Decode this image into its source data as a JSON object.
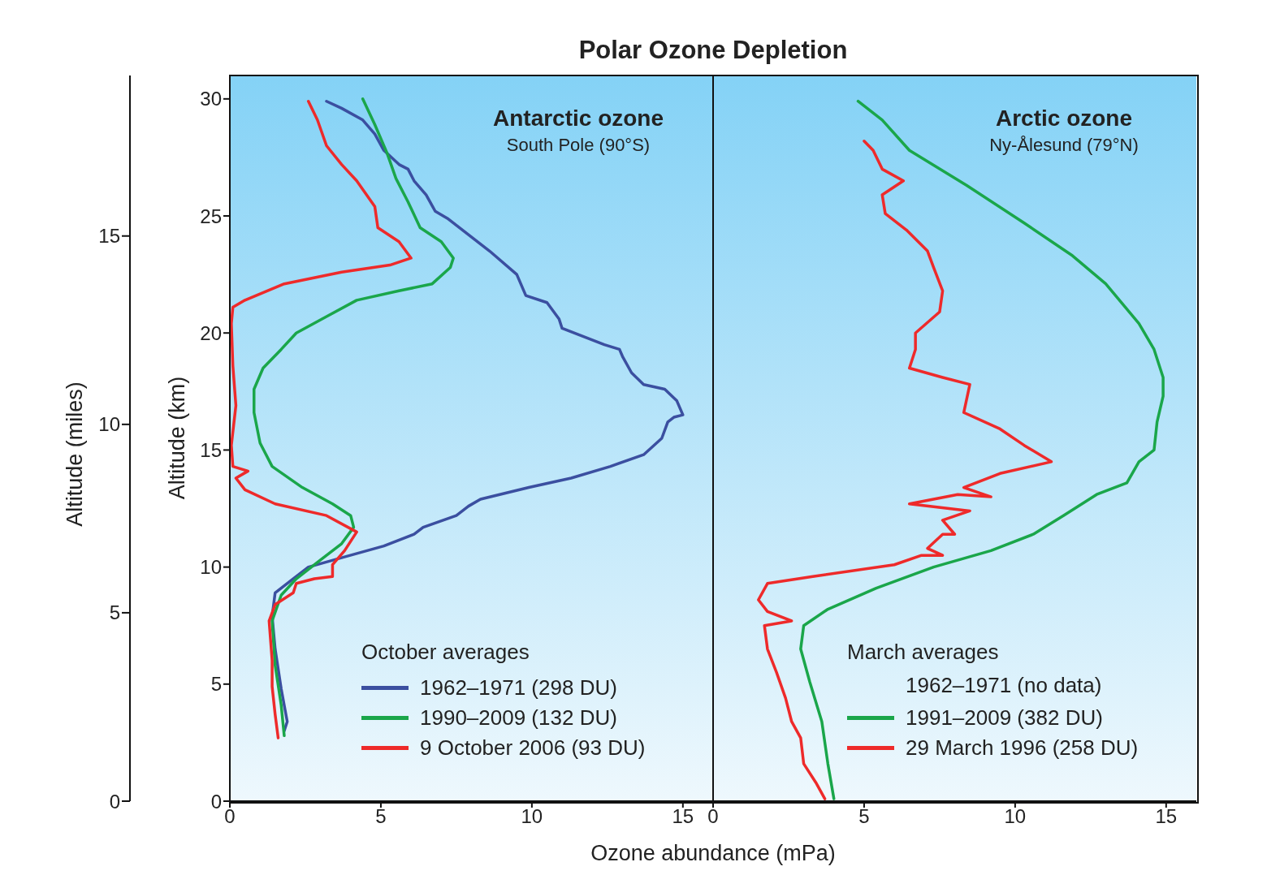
{
  "chart_data": [
    {
      "type": "line",
      "title": "Antarctic ozone",
      "subtitle": "South Pole (90°S)",
      "xlabel": "Ozone abundance (mPa)",
      "ylabel": "Altitude (km)",
      "y2label": "Altitude (miles)",
      "legend_title": "October averages",
      "annotations": [
        "Polar Ozone Depletion"
      ],
      "xlim": [
        0,
        16
      ],
      "xticks": [
        0,
        5,
        10,
        15
      ],
      "ylim": [
        0,
        31
      ],
      "yticks": [
        0,
        5,
        10,
        15,
        20,
        25,
        30
      ],
      "y2lim": [
        0,
        19.26
      ],
      "y2ticks": [
        0,
        5,
        10,
        15
      ],
      "legend": "bottom",
      "series": [
        {
          "name": "1962–1971 (298 DU)",
          "color": "#3b4fa0",
          "x": [
            1.8,
            1.9,
            1.7,
            1.5,
            1.4,
            1.5,
            2.0,
            2.6,
            3.7,
            5.1,
            6.1,
            6.4,
            7.5,
            7.9,
            8.3,
            9.9,
            11.3,
            12.6,
            13.7,
            14.3,
            14.5,
            14.7,
            15.0,
            14.8,
            14.4,
            13.7,
            13.3,
            13.0,
            12.9,
            12.4,
            11.0,
            10.9,
            10.5,
            9.8,
            9.5,
            8.6,
            7.9,
            7.2,
            6.8,
            6.5,
            6.1,
            5.9,
            5.6,
            5.1,
            4.8,
            4.4,
            3.7,
            3.2
          ],
          "values": [
            3.0,
            3.4,
            4.8,
            6.5,
            7.9,
            8.9,
            9.4,
            10.0,
            10.4,
            10.9,
            11.4,
            11.7,
            12.2,
            12.6,
            12.9,
            13.4,
            13.8,
            14.3,
            14.8,
            15.5,
            16.2,
            16.4,
            16.5,
            17.1,
            17.6,
            17.8,
            18.3,
            19.0,
            19.3,
            19.5,
            20.2,
            20.6,
            21.3,
            21.6,
            22.5,
            23.5,
            24.2,
            24.9,
            25.2,
            25.9,
            26.5,
            27.0,
            27.2,
            27.8,
            28.5,
            29.1,
            29.6,
            29.9
          ]
        },
        {
          "name": "1990–2009 (132 DU)",
          "color": "#1aa64a",
          "x": [
            1.8,
            1.7,
            1.5,
            1.4,
            1.7,
            2.2,
            3.0,
            3.7,
            4.1,
            4.0,
            3.4,
            2.4,
            1.4,
            1.0,
            0.8,
            0.8,
            1.1,
            1.7,
            2.2,
            3.2,
            4.2,
            5.6,
            6.7,
            7.3,
            7.4,
            7.0,
            6.3,
            5.9,
            5.5,
            5.2,
            4.8,
            4.4
          ],
          "values": [
            2.8,
            4.1,
            5.8,
            7.7,
            8.8,
            9.5,
            10.3,
            11.0,
            11.7,
            12.2,
            12.7,
            13.4,
            14.3,
            15.3,
            16.6,
            17.6,
            18.5,
            19.3,
            20.0,
            20.7,
            21.4,
            21.8,
            22.1,
            22.8,
            23.2,
            23.9,
            24.5,
            25.6,
            26.6,
            27.7,
            28.9,
            30.0
          ]
        },
        {
          "name": "9 October 2006 (93 DU)",
          "color": "#ee2a2a",
          "x": [
            1.6,
            1.5,
            1.4,
            1.4,
            1.3,
            1.5,
            2.1,
            2.2,
            2.8,
            3.4,
            3.4,
            3.8,
            4.2,
            3.2,
            1.5,
            0.5,
            0.2,
            0.6,
            0.1,
            0.05,
            0.2,
            0.1,
            0.05,
            0.1,
            0.5,
            1.8,
            3.7,
            5.3,
            6.0,
            5.6,
            4.9,
            4.8,
            4.2,
            3.7,
            3.2,
            2.9,
            2.6
          ],
          "values": [
            2.7,
            3.7,
            4.9,
            6.0,
            7.7,
            8.4,
            8.9,
            9.3,
            9.5,
            9.6,
            10.1,
            10.7,
            11.5,
            12.2,
            12.7,
            13.3,
            13.8,
            14.1,
            14.3,
            15.2,
            16.9,
            18.6,
            20.4,
            21.1,
            21.4,
            22.1,
            22.6,
            22.9,
            23.2,
            23.9,
            24.5,
            25.4,
            26.5,
            27.2,
            28.0,
            29.1,
            29.9
          ]
        }
      ]
    },
    {
      "type": "line",
      "title": "Arctic ozone",
      "subtitle": "Ny-Ålesund (79°N)",
      "legend_title": "March averages",
      "annotations": [
        "1962–1971 (no data)"
      ],
      "xlim": [
        0,
        16
      ],
      "xticks": [
        0,
        5,
        10,
        15
      ],
      "ylim": [
        0,
        31
      ],
      "yticks": [
        0,
        5,
        10,
        15,
        20,
        25,
        30
      ],
      "tick_labels": "x",
      "legend": "bottom",
      "series": [
        {
          "name": "1991–2009 (382 DU)",
          "color": "#1aa64a",
          "x": [
            4.0,
            3.8,
            3.6,
            3.2,
            2.9,
            3.0,
            3.8,
            5.4,
            7.3,
            9.2,
            10.6,
            11.6,
            12.7,
            13.7,
            14.1,
            14.6,
            14.7,
            14.9,
            14.9,
            14.6,
            14.1,
            13.0,
            11.9,
            10.3,
            8.4,
            6.5,
            5.6,
            4.8
          ],
          "values": [
            0.1,
            1.6,
            3.4,
            5.1,
            6.5,
            7.5,
            8.2,
            9.1,
            10.0,
            10.7,
            11.4,
            12.2,
            13.1,
            13.6,
            14.5,
            15.0,
            16.2,
            17.3,
            18.1,
            19.3,
            20.4,
            22.1,
            23.3,
            24.7,
            26.3,
            27.8,
            29.1,
            29.9
          ]
        },
        {
          "name": "29 March 1996 (258 DU)",
          "color": "#ee2a2a",
          "x": [
            3.7,
            3.4,
            3.0,
            2.9,
            2.6,
            2.4,
            2.1,
            1.8,
            1.7,
            2.6,
            1.8,
            1.5,
            1.8,
            3.3,
            6.0,
            6.9,
            7.6,
            7.1,
            7.6,
            8.0,
            7.6,
            8.5,
            6.5,
            8.1,
            9.2,
            8.3,
            9.5,
            11.2,
            10.3,
            9.5,
            8.3,
            8.5,
            7.6,
            6.5,
            6.7,
            6.7,
            7.5,
            7.6,
            7.3,
            7.1,
            6.4,
            5.7,
            5.6,
            6.3,
            5.6,
            5.3,
            5.0
          ],
          "values": [
            0.1,
            0.8,
            1.6,
            2.7,
            3.4,
            4.4,
            5.5,
            6.5,
            7.5,
            7.7,
            8.1,
            8.6,
            9.3,
            9.6,
            10.1,
            10.5,
            10.5,
            10.8,
            11.4,
            11.4,
            12.0,
            12.4,
            12.7,
            13.1,
            13.0,
            13.4,
            14.0,
            14.5,
            15.2,
            15.9,
            16.6,
            17.8,
            18.1,
            18.5,
            19.3,
            20.0,
            20.9,
            21.8,
            22.8,
            23.5,
            24.4,
            25.1,
            25.9,
            26.5,
            27.0,
            27.8,
            28.2
          ]
        }
      ]
    }
  ]
}
